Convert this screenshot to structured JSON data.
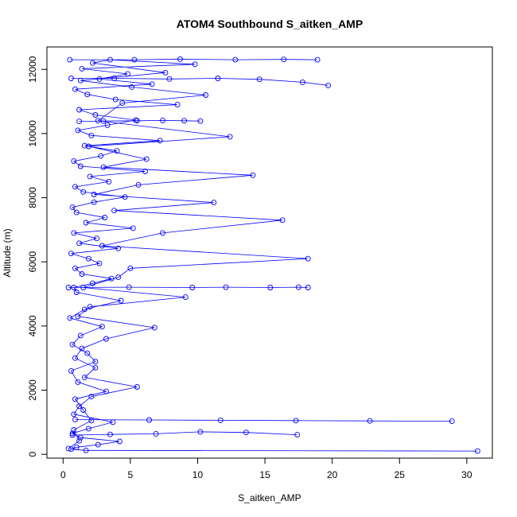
{
  "chart_data": {
    "type": "line",
    "title": "ATOM4 Southbound S_aitken_AMP",
    "xlabel": "S_aitken_AMP",
    "ylabel": "Altitude (m)",
    "xlim": [
      -1.2,
      31.9
    ],
    "ylim": [
      -120,
      12700
    ],
    "x_ticks": [
      0,
      5,
      10,
      15,
      20,
      25,
      30
    ],
    "x_tick_labels": [
      "0",
      "5",
      "10",
      "15",
      "20",
      "25",
      "30"
    ],
    "y_ticks": [
      0,
      2000,
      4000,
      6000,
      8000,
      10000,
      12000
    ],
    "y_tick_labels": [
      "0",
      "2000",
      "4000",
      "6000",
      "8000",
      "10000",
      "12000"
    ],
    "grid": false,
    "legend": "none",
    "color": "#0000ff",
    "markers": "open-circle",
    "series": [
      {
        "style": "line+points",
        "x": [
          0.4,
          1.2,
          0.8,
          2.1,
          1.5,
          0.9,
          3.2,
          1.1,
          0.6,
          2.4,
          1.8,
          0.7,
          1.3,
          2.9,
          0.5,
          1.6,
          4.3,
          1.0,
          0.8,
          2.2,
          3.6,
          1.4,
          0.9,
          2.7,
          1.9,
          0.6,
          4.1,
          1.2,
          2.5,
          0.8,
          5.2,
          1.7,
          3.1,
          1.0,
          0.7,
          2.3,
          4.6,
          1.5,
          0.9,
          3.4,
          2.0,
          6.1,
          1.3,
          0.8,
          2.8,
          4.0,
          1.6,
          7.2,
          2.1,
          1.1,
          3.3,
          5.4,
          2.4,
          1.2,
          8.5,
          3.9,
          1.8,
          0.9,
          6.6,
          2.7,
          4.8,
          1.4,
          9.8,
          3.5,
          2.2,
          7.6,
          1.3,
          5.1,
          10.6,
          4.4,
          2.6,
          12.4,
          1.9,
          6.2,
          3.0,
          14.1,
          5.6,
          2.3,
          11.2,
          3.8,
          16.3,
          7.4,
          2.9,
          18.2,
          5.0,
          4.1,
          1.5,
          9.1,
          2.0,
          1.1,
          6.8,
          3.2,
          1.4,
          0.9,
          2.4,
          1.6,
          5.5,
          2.1,
          1.2,
          0.8,
          3.7,
          1.9,
          0.7,
          1.3,
          4.2,
          2.6,
          1.0,
          0.6,
          1.7,
          30.8
        ],
        "y": [
          180,
          420,
          760,
          1050,
          1380,
          1720,
          1960,
          2250,
          2600,
          2890,
          3150,
          3420,
          3700,
          3980,
          4250,
          4520,
          4790,
          5050,
          5200,
          5330,
          5480,
          5620,
          5800,
          5950,
          6100,
          6260,
          6420,
          6580,
          6730,
          6900,
          7050,
          7220,
          7380,
          7540,
          7700,
          7860,
          8020,
          8180,
          8340,
          8500,
          8660,
          8820,
          8980,
          9140,
          9300,
          9460,
          9620,
          9780,
          9940,
          10100,
          10260,
          10420,
          10580,
          10740,
          10900,
          11060,
          11220,
          11380,
          11540,
          11700,
          11860,
          12020,
          12160,
          12300,
          12200,
          11900,
          11650,
          11450,
          11200,
          10950,
          10400,
          9900,
          9600,
          9200,
          8950,
          8700,
          8400,
          8100,
          7850,
          7600,
          7300,
          6900,
          6500,
          6100,
          5800,
          5520,
          5200,
          4900,
          4600,
          4300,
          3950,
          3600,
          3300,
          3000,
          2700,
          2400,
          2100,
          1800,
          1500,
          1250,
          1000,
          800,
          650,
          520,
          400,
          300,
          220,
          160,
          120,
          100
        ]
      },
      {
        "style": "line+points",
        "x": [
          0.5,
          5.3,
          8.7,
          12.8,
          16.4,
          18.9
        ],
        "y": [
          12300,
          12300,
          12320,
          12300,
          12310,
          12300
        ]
      },
      {
        "style": "line+points",
        "x": [
          0.6,
          3.8,
          7.9,
          11.5,
          14.6,
          17.8,
          19.7
        ],
        "y": [
          11720,
          11720,
          11700,
          11720,
          11690,
          11600,
          11500
        ]
      },
      {
        "style": "line+points",
        "x": [
          0.4,
          4.9,
          9.6,
          12.1,
          15.4,
          17.5,
          18.2
        ],
        "y": [
          5200,
          5210,
          5200,
          5210,
          5200,
          5210,
          5200
        ]
      },
      {
        "style": "line+points",
        "x": [
          0.9,
          6.4,
          11.7,
          17.3,
          22.8,
          28.9
        ],
        "y": [
          1080,
          1070,
          1060,
          1050,
          1040,
          1030
        ]
      },
      {
        "style": "line+points",
        "x": [
          0.7,
          3.5,
          6.9,
          10.2,
          13.6,
          17.4
        ],
        "y": [
          600,
          620,
          640,
          700,
          680,
          610
        ]
      },
      {
        "style": "line+points",
        "x": [
          1.2,
          3.0,
          5.5,
          7.4,
          9.0,
          10.2
        ],
        "y": [
          10380,
          10390,
          10400,
          10410,
          10400,
          10390
        ]
      }
    ]
  }
}
